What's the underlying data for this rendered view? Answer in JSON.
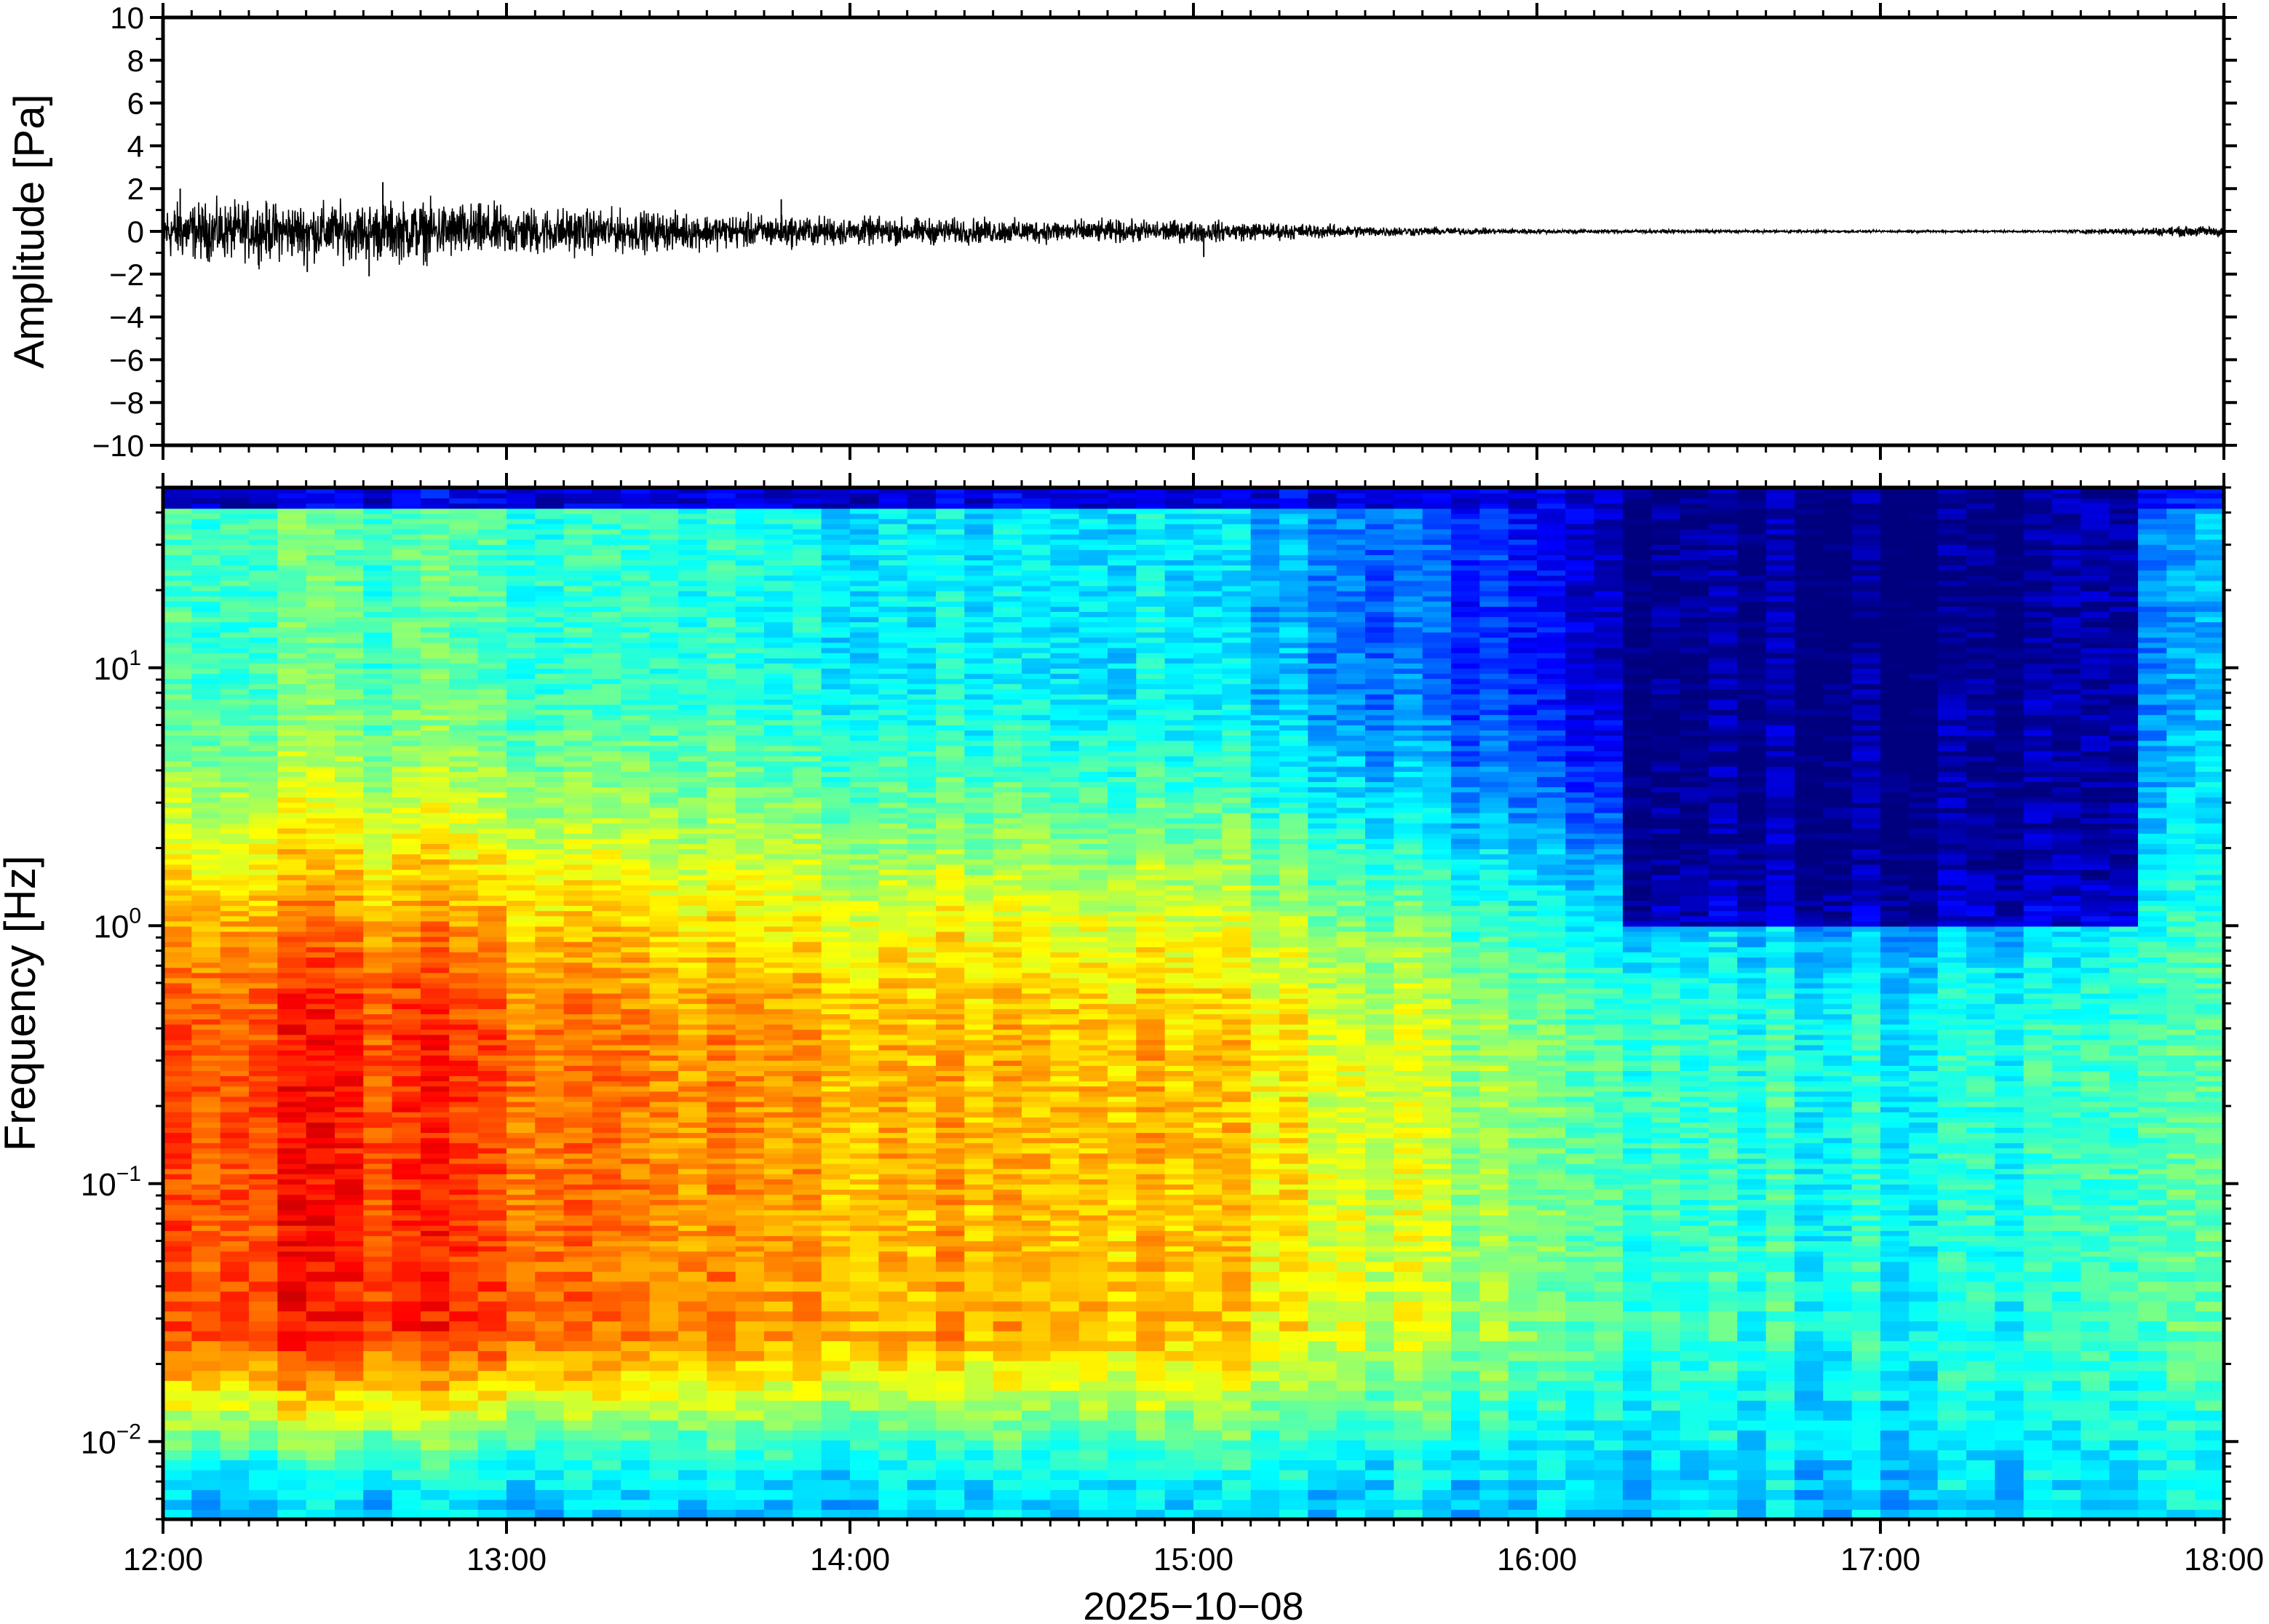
{
  "chart_data": [
    {
      "type": "line",
      "panel": "waveform",
      "ylabel": "Amplitude [Pa]",
      "ylim": [
        -10,
        10
      ],
      "yticks": [
        10,
        8,
        6,
        4,
        2,
        0,
        -2,
        -4,
        -6,
        -8,
        -10
      ],
      "ytick_labels": [
        "10",
        "8",
        "6",
        "4",
        "2",
        "0",
        "−2",
        "−4",
        "−6",
        "−8",
        "−10"
      ],
      "xlim_hours": [
        12,
        18
      ],
      "envelope": {
        "hours": [
          12.0,
          12.5,
          12.75,
          13.0,
          13.5,
          14.0,
          14.5,
          15.0,
          15.25,
          15.5,
          15.75,
          16.0,
          16.5,
          17.0,
          17.5,
          17.8,
          18.0
        ],
        "amplitude_pa": [
          1.0,
          1.0,
          1.05,
          0.9,
          0.65,
          0.5,
          0.42,
          0.38,
          0.3,
          0.2,
          0.13,
          0.08,
          0.05,
          0.04,
          0.04,
          0.15,
          0.2
        ]
      },
      "peaks": [
        {
          "hour": 12.05,
          "value": 2.0
        },
        {
          "hour": 12.42,
          "value": -1.9
        },
        {
          "hour": 12.6,
          "value": -2.1
        },
        {
          "hour": 12.64,
          "value": 2.3
        },
        {
          "hour": 13.8,
          "value": 1.5
        },
        {
          "hour": 15.03,
          "value": -1.2
        }
      ],
      "line_color": "#000000"
    },
    {
      "type": "heatmap",
      "panel": "spectrogram",
      "xlabel": "2025−10−08",
      "ylabel": "Frequency [Hz]",
      "yscale": "log",
      "ylim": [
        0.005,
        50
      ],
      "yticks": [
        0.01,
        0.1,
        1,
        10
      ],
      "ytick_base": "10",
      "ytick_exponents": [
        "−2",
        "−1",
        "0",
        "1"
      ],
      "xticks": [
        "12:00",
        "13:00",
        "14:00",
        "15:00",
        "16:00",
        "17:00",
        "18:00"
      ],
      "xlim_hours": [
        12,
        18
      ],
      "colormap": [
        "#00007f",
        "#0000ff",
        "#0080ff",
        "#00ffff",
        "#80ff80",
        "#ffff00",
        "#ff8000",
        "#ff0000",
        "#7f0000"
      ],
      "relative_level_profile": {
        "hours": [
          12.0,
          12.5,
          13.0,
          13.5,
          14.0,
          14.5,
          15.0,
          15.5,
          16.0,
          16.25,
          16.5,
          17.0,
          17.5,
          17.7,
          18.0
        ],
        "low_band_0p1hz": [
          0.82,
          0.84,
          0.8,
          0.74,
          0.72,
          0.7,
          0.68,
          0.6,
          0.5,
          0.45,
          0.42,
          0.4,
          0.4,
          0.42,
          0.44
        ],
        "high_band_10hz": [
          0.46,
          0.46,
          0.44,
          0.42,
          0.38,
          0.36,
          0.35,
          0.25,
          0.14,
          0.05,
          0.02,
          0.0,
          0.0,
          0.2,
          0.28
        ]
      }
    }
  ]
}
